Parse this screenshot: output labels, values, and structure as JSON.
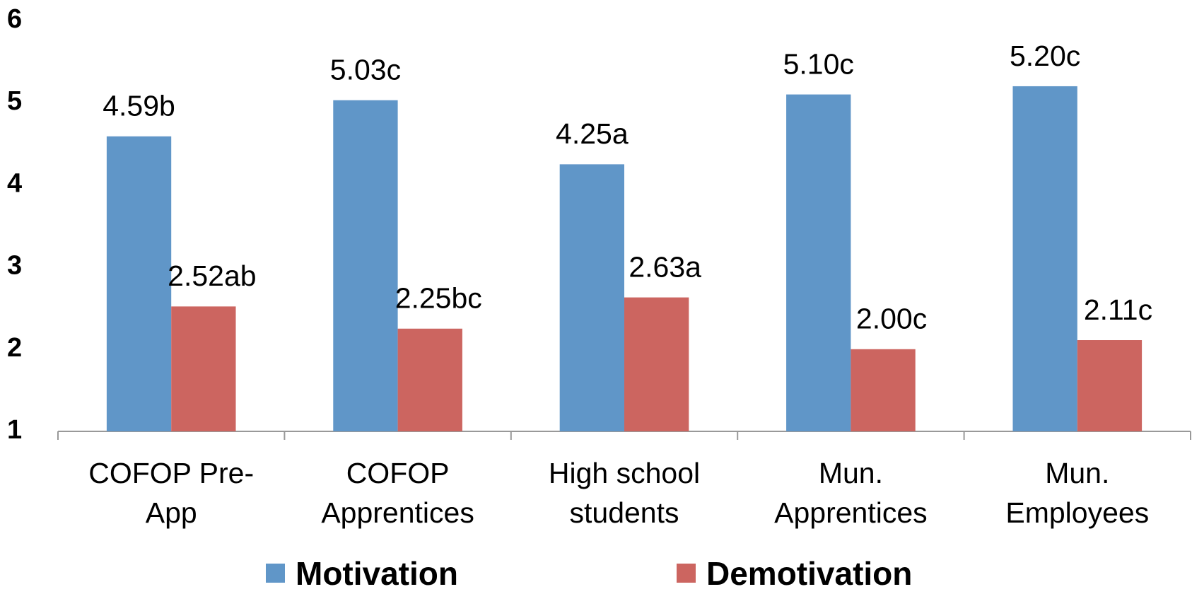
{
  "chart_data": {
    "type": "bar",
    "categories": [
      [
        "COFOP Pre-",
        "App"
      ],
      [
        "COFOP",
        "Apprentices"
      ],
      [
        "High school",
        "students"
      ],
      [
        "Mun.",
        "Apprentices"
      ],
      [
        "Mun.",
        "Employees"
      ]
    ],
    "series": [
      {
        "name": "Motivation",
        "color": "#6096c8",
        "values": [
          4.59,
          5.03,
          4.25,
          5.1,
          5.2
        ],
        "value_labels": [
          "4.59b",
          "5.03c",
          "4.25a",
          "5.10c",
          "5.20c"
        ]
      },
      {
        "name": "Demotivation",
        "color": "#cc6560",
        "values": [
          2.52,
          2.25,
          2.63,
          2.0,
          2.11
        ],
        "value_labels": [
          "2.52ab",
          "2.25bc",
          "2.63a",
          "2.00c",
          "2.11c"
        ]
      }
    ],
    "ylim": [
      1,
      6
    ],
    "yticks": [
      1,
      2,
      3,
      4,
      5,
      6
    ],
    "grid": false
  }
}
